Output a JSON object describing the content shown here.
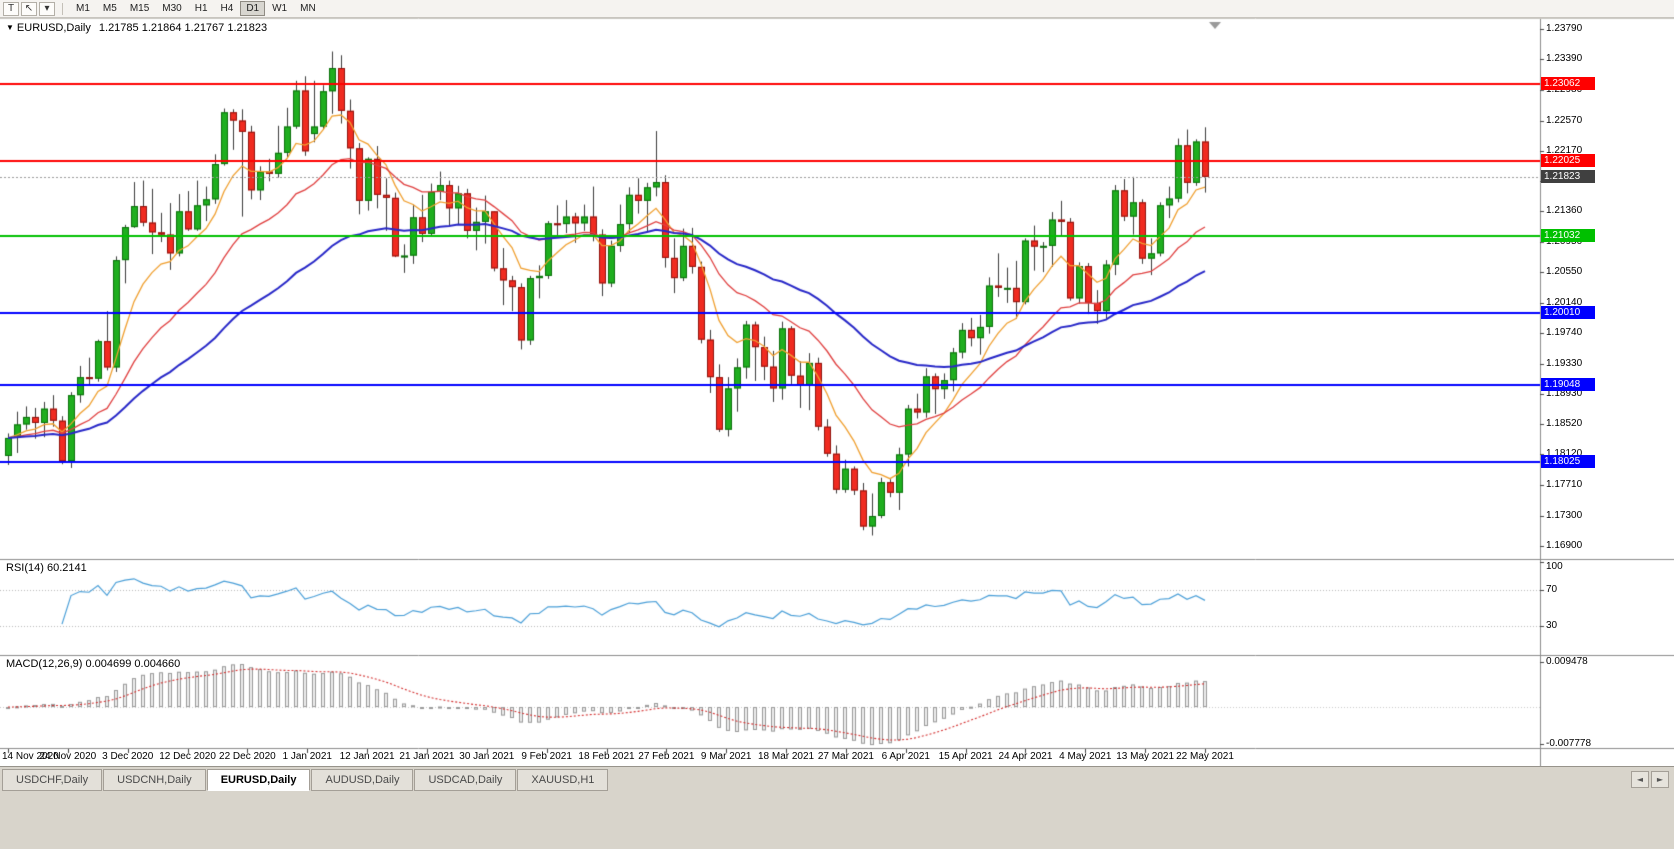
{
  "toolbar": {
    "tools": [
      {
        "label": "T"
      },
      {
        "label": "↖"
      },
      {
        "label": "▾"
      }
    ],
    "timeframes": {
      "items": [
        "M1",
        "M5",
        "M15",
        "M30",
        "H1",
        "H4",
        "D1",
        "W1",
        "MN"
      ],
      "active": "D1"
    }
  },
  "chart_data": {
    "type": "candlestick",
    "symbol": "EURUSD",
    "period": "Daily",
    "title": "EURUSD,Daily",
    "ohlc_text": "1.21785 1.21864 1.21767 1.21823",
    "quote": {
      "open": "1.21785",
      "high": "1.21864",
      "low": "1.21767",
      "close": "1.21823"
    },
    "price_axis_labels": [
      "1.23790",
      "1.23390",
      "1.22980",
      "1.22570",
      "1.22170",
      "1.21760",
      "1.21360",
      "1.20950",
      "1.20550",
      "1.20140",
      "1.19740",
      "1.19330",
      "1.18930",
      "1.18520",
      "1.18120",
      "1.17710",
      "1.17300",
      "1.16900"
    ],
    "x_axis_labels": [
      "14 Nov 2020",
      "24 Nov 2020",
      "3 Dec 2020",
      "12 Dec 2020",
      "22 Dec 2020",
      "1 Jan 2021",
      "12 Jan 2021",
      "21 Jan 2021",
      "30 Jan 2021",
      "9 Feb 2021",
      "18 Feb 2021",
      "27 Feb 2021",
      "9 Mar 2021",
      "18 Mar 2021",
      "27 Mar 2021",
      "6 Apr 2021",
      "15 Apr 2021",
      "24 Apr 2021",
      "4 May 2021",
      "13 May 2021",
      "22 May 2021"
    ],
    "hlines": [
      {
        "price": 1.23062,
        "label": "1.23062",
        "color": "#ff0000"
      },
      {
        "price": 1.22025,
        "label": "1.22025",
        "color": "#ff0000"
      },
      {
        "price": 1.21032,
        "label": "1.21032",
        "color": "#00c000"
      },
      {
        "price": 1.2001,
        "label": "1.20010",
        "color": "#0000ff"
      },
      {
        "price": 1.19048,
        "label": "1.19048",
        "color": "#0000ff"
      },
      {
        "price": 1.18025,
        "label": "1.18025",
        "color": "#0000ff"
      }
    ],
    "price_line": {
      "value": 1.21823,
      "label": "1.21823",
      "box_color": "#404040"
    },
    "moving_averages": [
      {
        "name": "ma-fast",
        "period": 8,
        "color": "#f0a030"
      },
      {
        "name": "ma-mid",
        "period": 20,
        "color": "#e04040"
      },
      {
        "name": "ma-slow",
        "period": 45,
        "color": "#2828c8",
        "width": 2
      }
    ],
    "indicators": {
      "rsi": {
        "label": "RSI(14) 60.2141",
        "period": 14,
        "value": "60.2141",
        "color": "#4a9fd8",
        "levels": [
          "100",
          "70",
          "30"
        ],
        "level_values": [
          100,
          70,
          30
        ]
      },
      "macd": {
        "label": "MACD(12,26,9) 0.004699 0.004660",
        "fast": 12,
        "slow": 26,
        "signal_period": 9,
        "values": [
          "0.004699",
          "0.004660"
        ],
        "signal_color": "#d43030",
        "histogram_color": "#9a9a9a",
        "axis_labels": [
          {
            "text": "0.009478",
            "value": 0.009478
          },
          {
            "text": "-0.007778",
            "value": -0.007778
          }
        ]
      }
    },
    "candles": [
      [
        1.181,
        1.184,
        1.1798,
        1.1834
      ],
      [
        1.1834,
        1.1869,
        1.1814,
        1.1852
      ],
      [
        1.1852,
        1.1876,
        1.1845,
        1.1862
      ],
      [
        1.1862,
        1.1874,
        1.1833,
        1.1854
      ],
      [
        1.1854,
        1.1882,
        1.1835,
        1.1873
      ],
      [
        1.1873,
        1.1891,
        1.1849,
        1.1857
      ],
      [
        1.1857,
        1.1863,
        1.1799,
        1.1803
      ],
      [
        1.1803,
        1.1895,
        1.1794,
        1.1891
      ],
      [
        1.1891,
        1.193,
        1.1881,
        1.1915
      ],
      [
        1.1915,
        1.1941,
        1.1905,
        1.1913
      ],
      [
        1.1913,
        1.1965,
        1.1909,
        1.1963
      ],
      [
        1.1963,
        1.2003,
        1.1924,
        1.1928
      ],
      [
        1.1928,
        1.2076,
        1.1922,
        1.2071
      ],
      [
        1.2071,
        1.2118,
        1.204,
        1.2115
      ],
      [
        1.2115,
        1.2175,
        1.2114,
        1.2143
      ],
      [
        1.2143,
        1.2177,
        1.2116,
        1.2121
      ],
      [
        1.2121,
        1.2166,
        1.2079,
        1.2108
      ],
      [
        1.2108,
        1.2134,
        1.2095,
        1.2105
      ],
      [
        1.2105,
        1.2147,
        1.2058,
        1.208
      ],
      [
        1.208,
        1.2159,
        1.2076,
        1.2136
      ],
      [
        1.2136,
        1.2163,
        1.211,
        1.2112
      ],
      [
        1.2112,
        1.2177,
        1.211,
        1.2144
      ],
      [
        1.2144,
        1.2169,
        1.2123,
        1.2152
      ],
      [
        1.2152,
        1.2212,
        1.2146,
        1.2199
      ],
      [
        1.2199,
        1.2273,
        1.2197,
        1.2268
      ],
      [
        1.2268,
        1.2272,
        1.2218,
        1.2257
      ],
      [
        1.2257,
        1.2272,
        1.2129,
        1.2242
      ],
      [
        1.2242,
        1.225,
        1.2152,
        1.2164
      ],
      [
        1.2164,
        1.2196,
        1.2151,
        1.2189
      ],
      [
        1.2189,
        1.2206,
        1.2176,
        1.2186
      ],
      [
        1.2186,
        1.225,
        1.2181,
        1.2214
      ],
      [
        1.2214,
        1.2274,
        1.2208,
        1.2249
      ],
      [
        1.2249,
        1.231,
        1.2246,
        1.2297
      ],
      [
        1.2297,
        1.2316,
        1.221,
        1.2216
      ],
      [
        1.2239,
        1.231,
        1.2228,
        1.2249
      ],
      [
        1.2249,
        1.2304,
        1.2245,
        1.2296
      ],
      [
        1.2296,
        1.2349,
        1.2266,
        1.2327
      ],
      [
        1.2327,
        1.2344,
        1.2253,
        1.227
      ],
      [
        1.227,
        1.2285,
        1.2193,
        1.222
      ],
      [
        1.222,
        1.2227,
        1.2132,
        1.215
      ],
      [
        1.215,
        1.2208,
        1.2137,
        1.2206
      ],
      [
        1.2206,
        1.2223,
        1.214,
        1.2158
      ],
      [
        1.2158,
        1.218,
        1.211,
        1.2154
      ],
      [
        1.2154,
        1.2161,
        1.2075,
        1.2076
      ],
      [
        1.2076,
        1.2092,
        1.2054,
        1.2077
      ],
      [
        1.2077,
        1.2145,
        1.2066,
        1.2128
      ],
      [
        1.2128,
        1.2158,
        1.2095,
        1.2106
      ],
      [
        1.2106,
        1.2173,
        1.2103,
        1.2162
      ],
      [
        1.2162,
        1.2189,
        1.2151,
        1.2171
      ],
      [
        1.2171,
        1.2177,
        1.2116,
        1.214
      ],
      [
        1.214,
        1.217,
        1.2118,
        1.216
      ],
      [
        1.216,
        1.2166,
        1.21,
        1.211
      ],
      [
        1.211,
        1.2141,
        1.2084,
        1.2122
      ],
      [
        1.2122,
        1.2157,
        1.2093,
        1.2136
      ],
      [
        1.2136,
        1.2136,
        1.2056,
        1.206
      ],
      [
        1.206,
        1.2087,
        1.2011,
        1.2044
      ],
      [
        1.2044,
        1.205,
        1.2003,
        1.2035
      ],
      [
        1.2035,
        1.204,
        1.1952,
        1.1964
      ],
      [
        1.1964,
        1.205,
        1.1958,
        1.2047
      ],
      [
        1.2047,
        1.2064,
        1.202,
        1.205
      ],
      [
        1.205,
        1.2123,
        1.2046,
        1.212
      ],
      [
        1.212,
        1.2144,
        1.2104,
        1.2119
      ],
      [
        1.2119,
        1.2151,
        1.2107,
        1.2129
      ],
      [
        1.2129,
        1.2134,
        1.2094,
        1.212
      ],
      [
        1.212,
        1.2145,
        1.211,
        1.2129
      ],
      [
        1.2129,
        1.2169,
        1.2096,
        1.2105
      ],
      [
        1.2105,
        1.2112,
        1.2023,
        1.204
      ],
      [
        1.204,
        1.2097,
        1.2035,
        1.209
      ],
      [
        1.209,
        1.2145,
        1.2082,
        1.2119
      ],
      [
        1.2119,
        1.2168,
        1.2107,
        1.2158
      ],
      [
        1.2158,
        1.218,
        1.2133,
        1.215
      ],
      [
        1.215,
        1.2174,
        1.2109,
        1.2168
      ],
      [
        1.2168,
        1.2243,
        1.2156,
        1.2175
      ],
      [
        1.2175,
        1.2184,
        1.2061,
        1.2074
      ],
      [
        1.2074,
        1.21,
        1.2027,
        1.2047
      ],
      [
        1.2047,
        1.2113,
        1.2043,
        1.209
      ],
      [
        1.209,
        1.2114,
        1.2053,
        1.2062
      ],
      [
        1.2062,
        1.2069,
        1.196,
        1.1965
      ],
      [
        1.1965,
        1.1978,
        1.1894,
        1.1915
      ],
      [
        1.1915,
        1.1932,
        1.1842,
        1.1845
      ],
      [
        1.1845,
        1.1915,
        1.1836,
        1.19
      ],
      [
        1.19,
        1.194,
        1.1869,
        1.1928
      ],
      [
        1.1928,
        1.199,
        1.1913,
        1.1985
      ],
      [
        1.1985,
        1.1989,
        1.191,
        1.1955
      ],
      [
        1.1955,
        1.1969,
        1.1911,
        1.1929
      ],
      [
        1.1929,
        1.195,
        1.1882,
        1.19
      ],
      [
        1.19,
        1.1989,
        1.1885,
        1.198
      ],
      [
        1.198,
        1.1983,
        1.1906,
        1.1917
      ],
      [
        1.1917,
        1.1936,
        1.1874,
        1.1904
      ],
      [
        1.1904,
        1.1947,
        1.1871,
        1.1934
      ],
      [
        1.1934,
        1.1941,
        1.1844,
        1.1849
      ],
      [
        1.1849,
        1.1859,
        1.1809,
        1.1813
      ],
      [
        1.1813,
        1.1824,
        1.176,
        1.1765
      ],
      [
        1.1765,
        1.1805,
        1.1761,
        1.1793
      ],
      [
        1.1793,
        1.1796,
        1.1758,
        1.1764
      ],
      [
        1.1764,
        1.1774,
        1.1711,
        1.1716
      ],
      [
        1.1716,
        1.176,
        1.1704,
        1.173
      ],
      [
        1.173,
        1.1781,
        1.1727,
        1.1775
      ],
      [
        1.1775,
        1.1779,
        1.1755,
        1.1761
      ],
      [
        1.1761,
        1.1821,
        1.1738,
        1.1812
      ],
      [
        1.1812,
        1.1878,
        1.1796,
        1.1873
      ],
      [
        1.1873,
        1.1893,
        1.186,
        1.1868
      ],
      [
        1.1868,
        1.1927,
        1.1861,
        1.1916
      ],
      [
        1.1916,
        1.192,
        1.1866,
        1.1899
      ],
      [
        1.1899,
        1.192,
        1.1886,
        1.1911
      ],
      [
        1.1911,
        1.1954,
        1.1896,
        1.1948
      ],
      [
        1.1948,
        1.1987,
        1.194,
        1.1978
      ],
      [
        1.1978,
        1.1994,
        1.1956,
        1.1967
      ],
      [
        1.1967,
        1.1998,
        1.1945,
        1.1982
      ],
      [
        1.1982,
        1.2048,
        1.1973,
        1.2037
      ],
      [
        1.2037,
        1.208,
        1.2022,
        1.2034
      ],
      [
        1.2034,
        1.2061,
        1.2014,
        1.2034
      ],
      [
        1.2034,
        1.207,
        1.1993,
        1.2015
      ],
      [
        1.2015,
        1.21,
        1.2012,
        1.2097
      ],
      [
        1.2097,
        1.2117,
        1.2057,
        1.2089
      ],
      [
        1.2089,
        1.2095,
        1.2055,
        1.209
      ],
      [
        1.209,
        1.2135,
        1.2062,
        1.2125
      ],
      [
        1.2125,
        1.215,
        1.2102,
        1.2122
      ],
      [
        1.2122,
        1.2127,
        1.2017,
        1.202
      ],
      [
        1.202,
        1.2068,
        1.2013,
        1.2063
      ],
      [
        1.2063,
        1.2067,
        1.1999,
        1.2014
      ],
      [
        1.2014,
        1.2031,
        1.1986,
        1.2003
      ],
      [
        1.2003,
        1.2071,
        1.1993,
        1.2065
      ],
      [
        1.2065,
        1.2171,
        1.2051,
        1.2164
      ],
      [
        1.2164,
        1.2179,
        1.2123,
        1.2129
      ],
      [
        1.2129,
        1.2182,
        1.2105,
        1.2148
      ],
      [
        1.2148,
        1.2152,
        1.2066,
        1.2073
      ],
      [
        1.2073,
        1.21,
        1.2051,
        1.208
      ],
      [
        1.208,
        1.2148,
        1.2076,
        1.2144
      ],
      [
        1.2144,
        1.2169,
        1.2127,
        1.2153
      ],
      [
        1.2153,
        1.2233,
        1.2148,
        1.2224
      ],
      [
        1.2224,
        1.2245,
        1.216,
        1.2174
      ],
      [
        1.2174,
        1.2232,
        1.217,
        1.2229
      ],
      [
        1.2229,
        1.2248,
        1.2161,
        1.2182
      ]
    ]
  },
  "tabs": {
    "items": [
      "USDCHF,Daily",
      "USDCNH,Daily",
      "EURUSD,Daily",
      "AUDUSD,Daily",
      "USDCAD,Daily",
      "XAUUSD,H1"
    ],
    "active_index": 2,
    "scroll_left_glyph": "◄",
    "scroll_right_glyph": "►"
  }
}
